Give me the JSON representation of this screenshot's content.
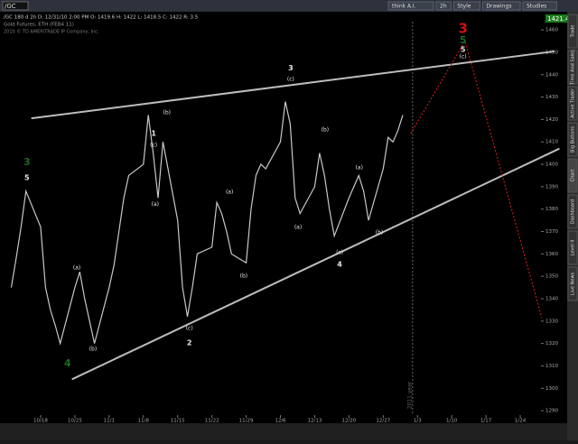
{
  "toolbar": {
    "symbol": "/GC",
    "buttons": [
      "think A.I.",
      "2h",
      "Style",
      "Drawings",
      "Studies"
    ]
  },
  "header": {
    "info": "/GC 180 d 2h  D: 12/31/10 2:00 PM  O: 1419.6  H: 1422  L: 1418.5  C: 1422  R: 3.5",
    "name": "Gold Futures, ETH (FEB4 11)",
    "copyright": "2010 © TD AMERITRADE IP Company, Inc.",
    "last_price": "1421.40"
  },
  "sidebar": [
    "Trade",
    "Time And Sales",
    "Active Trader",
    "Big Buttons",
    "Chart",
    "Dashboard",
    "Level II",
    "Live News"
  ],
  "chart_data": {
    "type": "line",
    "color": "#c8c8c8",
    "x": [
      -6,
      -5,
      -4,
      -3,
      0,
      1,
      2,
      3,
      4,
      7,
      8,
      9,
      10,
      11,
      14,
      15,
      16,
      17,
      18,
      21,
      22,
      23,
      24,
      25,
      28,
      29,
      30,
      31,
      32,
      35,
      36,
      37,
      38,
      39,
      42,
      43,
      44,
      45,
      46,
      49,
      50,
      51,
      52,
      53,
      56,
      57,
      58,
      59,
      60,
      63,
      64,
      65,
      66,
      67,
      70,
      71,
      72,
      73,
      74
    ],
    "values": [
      1345,
      1358,
      1372,
      1388,
      1372,
      1345,
      1335,
      1328,
      1320,
      1345,
      1352,
      1340,
      1330,
      1320,
      1345,
      1355,
      1370,
      1385,
      1395,
      1400,
      1422,
      1405,
      1385,
      1410,
      1375,
      1345,
      1332,
      1345,
      1360,
      1363,
      1383,
      1378,
      1370,
      1360,
      1356,
      1380,
      1395,
      1400,
      1398,
      1410,
      1428,
      1418,
      1385,
      1378,
      1390,
      1405,
      1395,
      1380,
      1368,
      1385,
      1390,
      1395,
      1388,
      1375,
      1398,
      1412,
      1410,
      1415,
      1422
    ],
    "xlim": [
      -8.3,
      105
    ],
    "xticks": [
      {
        "value": 0,
        "label": "10/18"
      },
      {
        "value": 7,
        "label": "10/25"
      },
      {
        "value": 14,
        "label": "11/1"
      },
      {
        "value": 21,
        "label": "11/8"
      },
      {
        "value": 28,
        "label": "11/15"
      },
      {
        "value": 35,
        "label": "11/22"
      },
      {
        "value": 42,
        "label": "11/29"
      },
      {
        "value": 49,
        "label": "12/6"
      },
      {
        "value": 56,
        "label": "12/13"
      },
      {
        "value": 63,
        "label": "12/20"
      },
      {
        "value": 70,
        "label": "12/27"
      },
      {
        "value": 77,
        "label": "1/3"
      },
      {
        "value": 84,
        "label": "1/10"
      },
      {
        "value": 91,
        "label": "1/17"
      },
      {
        "value": 98,
        "label": "1/24"
      }
    ],
    "ylim": [
      1284.8,
      1467.7
    ],
    "yticks": [
      1290,
      1300,
      1310,
      1320,
      1330,
      1340,
      1350,
      1360,
      1370,
      1380,
      1390,
      1400,
      1410,
      1420,
      1430,
      1440,
      1450,
      1460
    ],
    "year_marker": {
      "x": 76,
      "label": "2011 year"
    },
    "trendlines": [
      {
        "color": "#bdbdbd",
        "points": [
          [
            -1.9,
            1420.5
          ],
          [
            105,
            1450.4
          ]
        ]
      },
      {
        "color": "#bdbdbd",
        "points": [
          [
            6.4,
            1304
          ],
          [
            106,
            1407
          ]
        ]
      },
      {
        "color": "#e02020",
        "points": [
          [
            75.6,
            1413.7
          ],
          [
            86.7,
            1455
          ],
          [
            102.4,
            1331.5
          ]
        ]
      }
    ],
    "annotations": [
      {
        "text": "3",
        "x": -2.8,
        "y": 1400.8,
        "color": "#1f6b1f"
      },
      {
        "text": "5",
        "x": -2.8,
        "y": 1394
      },
      {
        "text": "4",
        "x": 5.5,
        "y": 1311,
        "color": "#1f6b1f"
      },
      {
        "text": "(a)",
        "x": 7.4,
        "y": 1353.7
      },
      {
        "text": "(b)",
        "x": 10.7,
        "y": 1317.4
      },
      {
        "text": "1",
        "x": 23.1,
        "y": 1413.7
      },
      {
        "text": "(c)",
        "x": 23.1,
        "y": 1408.5
      },
      {
        "text": "(b)",
        "x": 25.8,
        "y": 1423
      },
      {
        "text": "(a)",
        "x": 23.4,
        "y": 1382
      },
      {
        "text": "(c)",
        "x": 30.4,
        "y": 1326.7
      },
      {
        "text": "2",
        "x": 30.4,
        "y": 1320.2
      },
      {
        "text": "(a)",
        "x": 38.6,
        "y": 1387.5
      },
      {
        "text": "(b)",
        "x": 41.5,
        "y": 1350
      },
      {
        "text": "3",
        "x": 51.1,
        "y": 1443
      },
      {
        "text": "(c)",
        "x": 51.1,
        "y": 1437.9
      },
      {
        "text": "(a)",
        "x": 52.6,
        "y": 1371.8
      },
      {
        "text": "(b)",
        "x": 58.1,
        "y": 1415.3
      },
      {
        "text": "(a)",
        "x": 65.1,
        "y": 1398.4
      },
      {
        "text": "(c)",
        "x": 61.1,
        "y": 1360.5
      },
      {
        "text": "4",
        "x": 61.1,
        "y": 1355.3
      },
      {
        "text": "(b)",
        "x": 69.2,
        "y": 1369.4
      },
      {
        "text": "3",
        "x": 86.3,
        "y": 1460.4,
        "color": "#d01010"
      },
      {
        "text": "5",
        "x": 86.3,
        "y": 1455.2,
        "color": "#1f6b1f"
      },
      {
        "text": "5",
        "x": 86.3,
        "y": 1451.2
      },
      {
        "text": "(c)",
        "x": 86.3,
        "y": 1447.9
      }
    ]
  }
}
